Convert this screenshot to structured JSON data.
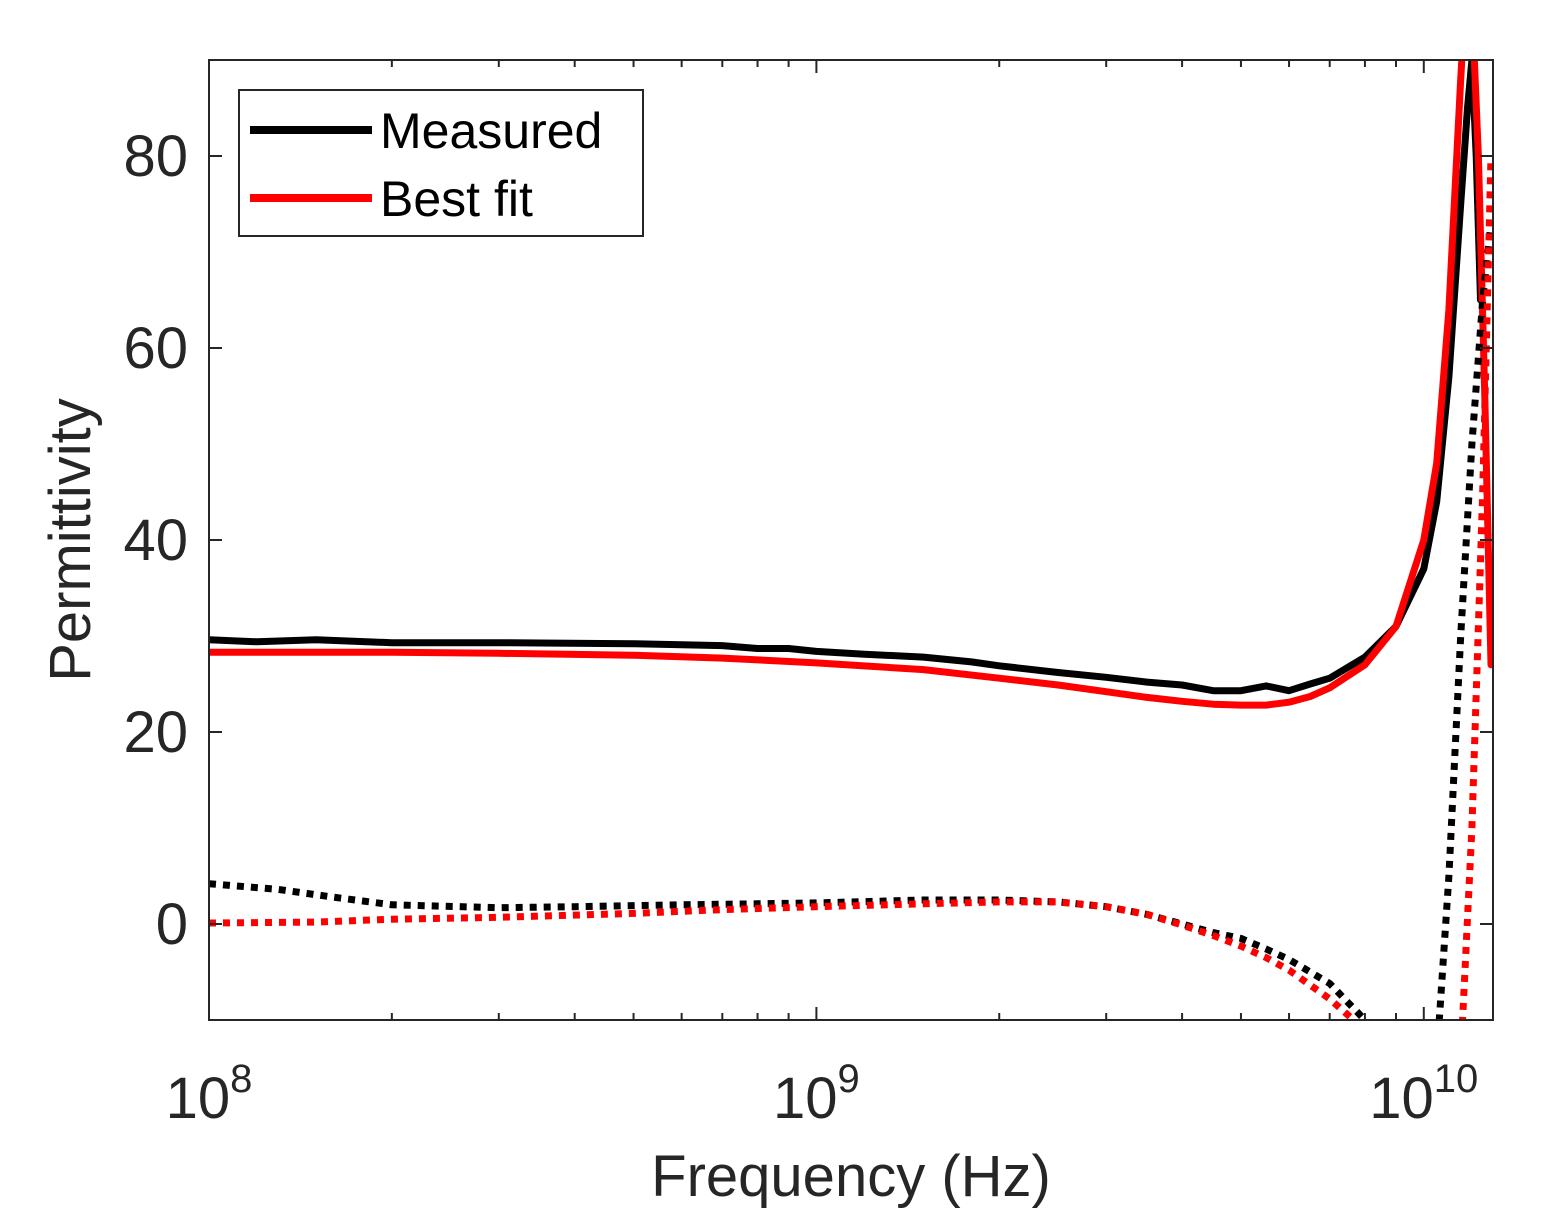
{
  "chart_data": {
    "type": "line",
    "xlabel": "Frequency (Hz)",
    "ylabel": "Permittivity",
    "xscale": "log",
    "xlim": [
      100000000,
      13000000000
    ],
    "ylim": [
      -10,
      90
    ],
    "x_ticks": [
      {
        "value": 100000000,
        "base": "10",
        "exp": "8"
      },
      {
        "value": 1000000000,
        "base": "10",
        "exp": "9"
      },
      {
        "value": 10000000000,
        "base": "10",
        "exp": "10"
      }
    ],
    "y_ticks": [
      0,
      20,
      40,
      60,
      80
    ],
    "y_tick_labels": [
      "0",
      "20",
      "40",
      "60",
      "80"
    ],
    "grid": false,
    "legend": {
      "position": "top-left",
      "entries": [
        {
          "label": "Measured",
          "color": "#000000"
        },
        {
          "label": "Best fit",
          "color": "#ff0000"
        }
      ]
    },
    "series": [
      {
        "name": "Measured",
        "part": "real",
        "style": "solid",
        "color": "#000000",
        "x": [
          100000000,
          120000000,
          150000000,
          200000000,
          300000000,
          500000000,
          700000000,
          800000000,
          900000000,
          1000000000,
          1200000000,
          1500000000,
          1800000000,
          2000000000,
          2500000000,
          3000000000,
          3500000000,
          4000000000,
          4500000000,
          5000000000,
          5500000000,
          6000000000,
          6500000000,
          7000000000,
          8000000000,
          9000000000,
          10000000000,
          10500000000,
          11000000000,
          11500000000,
          11800000000,
          12000000000,
          12200000000,
          12400000000
        ],
        "y": [
          29.6,
          29.4,
          29.6,
          29.3,
          29.3,
          29.2,
          29.0,
          28.7,
          28.7,
          28.4,
          28.1,
          27.8,
          27.3,
          26.9,
          26.2,
          25.7,
          25.2,
          24.9,
          24.3,
          24.3,
          24.8,
          24.3,
          25.0,
          25.6,
          27.8,
          31.0,
          37.0,
          44.0,
          57.0,
          75.0,
          85.0,
          90.0,
          80.0,
          65.0
        ]
      },
      {
        "name": "Best fit",
        "part": "real",
        "style": "solid",
        "color": "#ff0000",
        "x": [
          100000000,
          150000000,
          200000000,
          300000000,
          500000000,
          700000000,
          1000000000,
          1500000000,
          2000000000,
          2500000000,
          3000000000,
          3500000000,
          4000000000,
          4500000000,
          5000000000,
          5500000000,
          6000000000,
          6500000000,
          7000000000,
          8000000000,
          9000000000,
          10000000000,
          10500000000,
          11000000000,
          11500000000,
          11800000000,
          12000000000,
          12300000000,
          12600000000,
          12900000000
        ],
        "y": [
          28.3,
          28.3,
          28.3,
          28.2,
          28.0,
          27.7,
          27.2,
          26.5,
          25.6,
          24.9,
          24.2,
          23.6,
          23.2,
          22.9,
          22.8,
          22.8,
          23.1,
          23.7,
          24.6,
          27.0,
          31.0,
          40.0,
          48.0,
          64.0,
          88.0,
          100.0,
          96.0,
          80.0,
          55.0,
          27.0
        ]
      },
      {
        "name": "Measured",
        "part": "imaginary",
        "style": "dotted",
        "color": "#000000",
        "x": [
          100000000,
          130000000,
          160000000,
          200000000,
          300000000,
          400000000,
          600000000,
          800000000,
          1000000000,
          1500000000,
          2000000000,
          2500000000,
          3000000000,
          3500000000,
          4000000000,
          4500000000,
          5000000000,
          5500000000,
          6000000000,
          7000000000,
          8000000000,
          8700000000,
          9000000000,
          10500000000,
          11000000000,
          11500000000,
          12000000000,
          12500000000,
          12900000000
        ],
        "y": [
          4.2,
          3.6,
          2.8,
          2.0,
          1.7,
          1.8,
          2.0,
          2.1,
          2.2,
          2.5,
          2.5,
          2.3,
          1.8,
          1.0,
          0.0,
          -0.9,
          -1.5,
          -2.6,
          -3.7,
          -6.2,
          -10.0,
          -12.0,
          -14.0,
          -14.0,
          5.0,
          30.0,
          50.0,
          65.0,
          73.0
        ]
      },
      {
        "name": "Best fit",
        "part": "imaginary",
        "style": "dotted",
        "color": "#ff0000",
        "x": [
          100000000,
          150000000,
          200000000,
          300000000,
          500000000,
          700000000,
          1000000000,
          1500000000,
          2000000000,
          2500000000,
          3000000000,
          3500000000,
          4000000000,
          4500000000,
          5000000000,
          5500000000,
          6000000000,
          7000000000,
          7600000000,
          7900000000,
          11500000000,
          12000000000,
          12500000000,
          12900000000
        ],
        "y": [
          0.1,
          0.2,
          0.5,
          0.7,
          1.1,
          1.5,
          1.8,
          2.1,
          2.3,
          2.3,
          1.8,
          1.0,
          -0.1,
          -1.2,
          -2.3,
          -3.5,
          -4.8,
          -7.8,
          -9.8,
          -12.0,
          -14.0,
          10.0,
          45.0,
          80.0
        ]
      }
    ]
  }
}
